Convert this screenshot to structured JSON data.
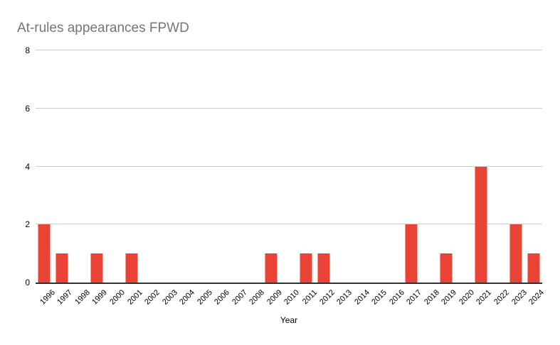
{
  "chart_data": {
    "type": "bar",
    "title": "At-rules appearances FPWD",
    "xlabel": "Year",
    "ylabel": "",
    "categories": [
      "1996",
      "1997",
      "1998",
      "1999",
      "2000",
      "2001",
      "2002",
      "2003",
      "2004",
      "2005",
      "2006",
      "2007",
      "2008",
      "2009",
      "2010",
      "2011",
      "2012",
      "2013",
      "2014",
      "2015",
      "2016",
      "2017",
      "2018",
      "2019",
      "2020",
      "2021",
      "2022",
      "2023",
      "2024"
    ],
    "values": [
      2,
      1,
      0,
      1,
      0,
      1,
      0,
      0,
      0,
      0,
      0,
      0,
      0,
      1,
      0,
      1,
      1,
      0,
      0,
      0,
      0,
      2,
      0,
      1,
      0,
      4,
      0,
      2,
      1
    ],
    "y_ticks": [
      0,
      2,
      4,
      6,
      8
    ],
    "ylim": [
      0,
      8
    ],
    "grid": true,
    "legend_position": "none",
    "colors": {
      "bar": "#EA4335",
      "grid": "#CCCCCC",
      "axis": "#333333",
      "title": "#757575",
      "label": "#000000"
    }
  }
}
